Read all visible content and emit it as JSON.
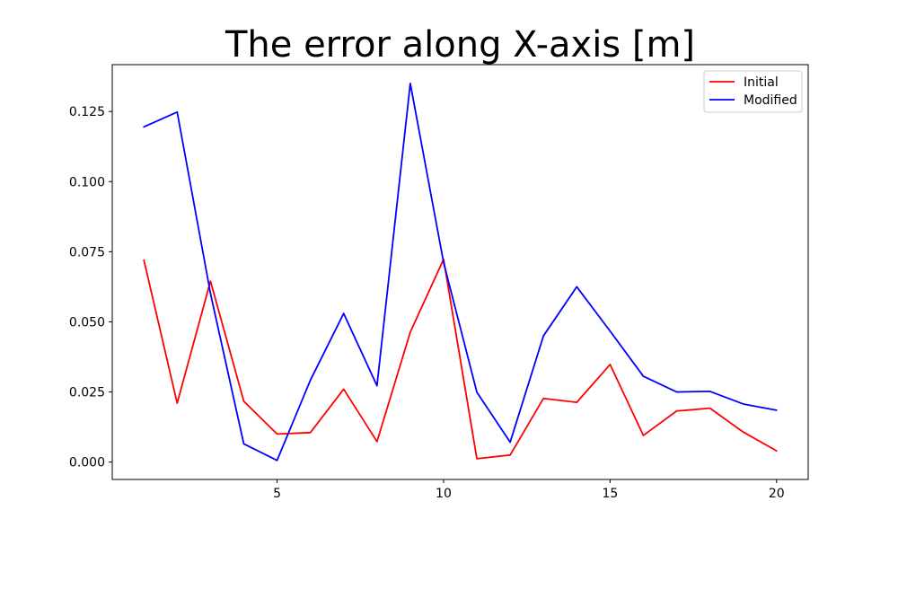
{
  "chart_data": {
    "type": "line",
    "title": "The error along X-axis [m]",
    "xlabel": "",
    "ylabel": "",
    "x": [
      1,
      2,
      3,
      4,
      5,
      6,
      7,
      8,
      9,
      10,
      11,
      12,
      13,
      14,
      15,
      16,
      17,
      18,
      19,
      20
    ],
    "xlim": [
      0.05,
      20.95
    ],
    "ylim": [
      -0.0062,
      0.1417
    ],
    "xticks": [
      5,
      10,
      15,
      20
    ],
    "xtick_labels": [
      "5",
      "10",
      "15",
      "20"
    ],
    "yticks": [
      0.0,
      0.025,
      0.05,
      0.075,
      0.1,
      0.125
    ],
    "ytick_labels": [
      "0.000",
      "0.025",
      "0.050",
      "0.075",
      "0.100",
      "0.125"
    ],
    "grid": false,
    "legend_position": "top-right",
    "series": [
      {
        "name": "Initial",
        "color": "#ff0000",
        "values": [
          0.072,
          0.021,
          0.0645,
          0.0217,
          0.01,
          0.0105,
          0.026,
          0.0073,
          0.0463,
          0.0723,
          0.0012,
          0.0025,
          0.0227,
          0.0213,
          0.0348,
          0.0095,
          0.0182,
          0.0192,
          0.0107,
          0.004
        ]
      },
      {
        "name": "Modified",
        "color": "#0000ff",
        "values": [
          0.1195,
          0.1248,
          0.0601,
          0.0065,
          0.0006,
          0.0292,
          0.053,
          0.0272,
          0.135,
          0.0712,
          0.0249,
          0.0071,
          0.045,
          0.0625,
          0.0467,
          0.0306,
          0.025,
          0.0252,
          0.0207,
          0.0185
        ]
      }
    ]
  }
}
